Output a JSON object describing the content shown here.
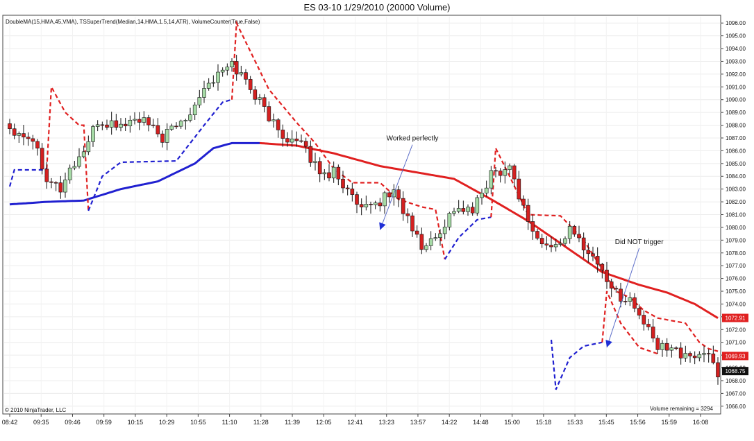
{
  "chart_data": {
    "type": "candlestick",
    "title": "ES 03-10  1/29/2010 (20000 Volume)",
    "indicator_label": "DoubleMA(15,HMA,45,VMA), TSSuperTrend(Median,14,HMA,1.5,14,ATR), VolumeCounter(True,False)",
    "copyright": "© 2010 NinjaTrader, LLC",
    "volume_remaining": "Volume remaining = 3294",
    "x_ticks": [
      "08:42",
      "09:35",
      "09:46",
      "09:59",
      "10:15",
      "10:29",
      "10:55",
      "11:10",
      "11:28",
      "11:39",
      "12:05",
      "12:41",
      "13:23",
      "13:57",
      "14:22",
      "14:48",
      "15:00",
      "15:18",
      "15:33",
      "15:45",
      "15:56",
      "15:59",
      "16:08"
    ],
    "y_ticks": [
      1066,
      1067,
      1068,
      1069,
      1070,
      1071,
      1072,
      1073,
      1074,
      1075,
      1076,
      1077,
      1078,
      1079,
      1080,
      1081,
      1082,
      1083,
      1084,
      1085,
      1086,
      1087,
      1088,
      1089,
      1090,
      1091,
      1092,
      1093,
      1094,
      1095,
      1096
    ],
    "ylim": [
      1065.5,
      1096.5
    ],
    "price_labels": [
      {
        "value": "1072.91",
        "y": 1072.91,
        "color": "#e02020"
      },
      {
        "value": "1069.93",
        "y": 1069.93,
        "color": "#e02020"
      },
      {
        "value": "1068.75",
        "y": 1068.75,
        "color": "#111111"
      }
    ],
    "annotations": [
      {
        "text": "Worked perfectly",
        "bar": 87,
        "price": 1086.8,
        "tip_bar": 80,
        "tip_price": 1079.8
      },
      {
        "text": "Did NOT trigger",
        "bar": 136,
        "price": 1078.7,
        "tip_bar": 129,
        "tip_price": 1070.6
      }
    ],
    "colors": {
      "up": "#a6dba6",
      "down": "#d42020",
      "vma": "#2020d0",
      "hma": "#e02020",
      "st_up": "#2020d0",
      "st_down": "#e02020"
    }
  }
}
